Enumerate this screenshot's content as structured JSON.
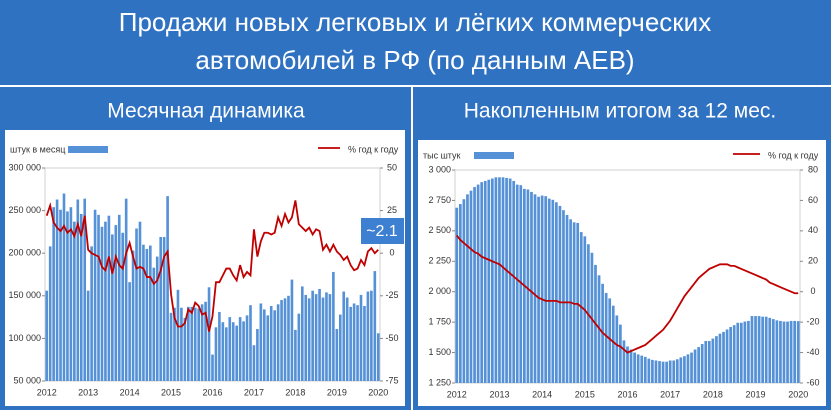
{
  "header": {
    "title_lines": [
      "Продажи новых легковых и лёгких коммерческих",
      "автомобилей в РФ (по данным АЕВ)"
    ]
  },
  "chart_data": [
    {
      "type": "bar_line",
      "title": "Месячная динамика",
      "annotation": "~2.1",
      "categories": [
        "2012",
        null,
        null,
        null,
        null,
        null,
        null,
        null,
        null,
        null,
        null,
        null,
        "2013",
        null,
        null,
        null,
        null,
        null,
        null,
        null,
        null,
        null,
        null,
        null,
        "2014",
        null,
        null,
        null,
        null,
        null,
        null,
        null,
        null,
        null,
        null,
        null,
        "2015",
        null,
        null,
        null,
        null,
        null,
        null,
        null,
        null,
        null,
        null,
        null,
        "2016",
        null,
        null,
        null,
        null,
        null,
        null,
        null,
        null,
        null,
        null,
        null,
        "2017",
        null,
        null,
        null,
        null,
        null,
        null,
        null,
        null,
        null,
        null,
        null,
        "2018",
        null,
        null,
        null,
        null,
        null,
        null,
        null,
        null,
        null,
        null,
        null,
        "2019",
        null,
        null,
        null,
        null,
        null,
        null,
        null,
        null,
        null,
        null,
        null,
        "2020"
      ],
      "series": [
        {
          "name": "штук в месяц",
          "type": "bar",
          "color": "#5591d6",
          "values": [
            156000,
            208000,
            254000,
            263000,
            251000,
            270000,
            249000,
            254000,
            237000,
            263000,
            246000,
            264000,
            156000,
            208000,
            251000,
            245000,
            231000,
            237000,
            244000,
            222000,
            233000,
            245000,
            224000,
            264000,
            166000,
            203000,
            229000,
            237000,
            210000,
            205000,
            209000,
            183000,
            196000,
            219000,
            219000,
            267000,
            130000,
            136000,
            157000,
            136000,
            124000,
            137000,
            137000,
            136000,
            135000,
            140000,
            143000,
            160000,
            81000,
            113000,
            131000,
            119000,
            113000,
            125000,
            119000,
            115000,
            125000,
            120000,
            127000,
            139000,
            92000,
            111000,
            141000,
            134000,
            127000,
            138000,
            133000,
            140000,
            145000,
            147000,
            150000,
            169000,
            110000,
            129000,
            161000,
            151000,
            147000,
            156000,
            152000,
            158000,
            148000,
            154000,
            152000,
            178000,
            111000,
            128000,
            155000,
            148000,
            137000,
            141000,
            139000,
            151000,
            138000,
            155000,
            156000,
            179000,
            106000
          ]
        },
        {
          "name": "% год к году",
          "type": "line",
          "axis": "y2",
          "color": "#c00000",
          "values": [
            22,
            28,
            18,
            15,
            13,
            16,
            12,
            14,
            10,
            17,
            10,
            22,
            2,
            0,
            -1,
            -2,
            -8,
            -10,
            -2,
            -12,
            -2,
            -7,
            -9,
            0,
            6,
            -2,
            -9,
            -8,
            -9,
            -14,
            -14,
            -18,
            -16,
            -10,
            -2,
            1,
            -24,
            -38,
            -43,
            -43,
            -41,
            -33,
            -35,
            -29,
            -31,
            -36,
            -35,
            -46,
            -37,
            -17,
            -17,
            -13,
            -9,
            -9,
            -13,
            -16,
            -7,
            -14,
            -11,
            -13,
            14,
            -2,
            7,
            12,
            12,
            11,
            12,
            21,
            16,
            23,
            18,
            21,
            31,
            17,
            15,
            13,
            15,
            11,
            14,
            13,
            2,
            5,
            1,
            5,
            1,
            -1,
            -4,
            -2,
            -7,
            -10,
            -9,
            -4,
            -7,
            1,
            3,
            0,
            2
          ]
        }
      ],
      "ylim": [
        50000,
        300000
      ],
      "yticks": [
        {
          "value": 50000,
          "label": "50 000"
        },
        {
          "value": 100000,
          "label": "100 000"
        },
        {
          "value": 150000,
          "label": "150 000"
        },
        {
          "value": 200000,
          "label": "200 000"
        },
        {
          "value": 250000,
          "label": "250 000"
        },
        {
          "value": 300000,
          "label": "300 000"
        }
      ],
      "y2lim": [
        -75,
        50
      ],
      "y2ticks": [
        -75,
        -50,
        -25,
        0,
        25,
        50
      ]
    },
    {
      "type": "bar_line",
      "title": "Накопленным итогом за 12 мес.",
      "categories": [
        "2012",
        null,
        null,
        null,
        null,
        null,
        null,
        null,
        null,
        null,
        null,
        null,
        "2013",
        null,
        null,
        null,
        null,
        null,
        null,
        null,
        null,
        null,
        null,
        null,
        "2014",
        null,
        null,
        null,
        null,
        null,
        null,
        null,
        null,
        null,
        null,
        null,
        "2015",
        null,
        null,
        null,
        null,
        null,
        null,
        null,
        null,
        null,
        null,
        null,
        "2016",
        null,
        null,
        null,
        null,
        null,
        null,
        null,
        null,
        null,
        null,
        null,
        "2017",
        null,
        null,
        null,
        null,
        null,
        null,
        null,
        null,
        null,
        null,
        null,
        "2018",
        null,
        null,
        null,
        null,
        null,
        null,
        null,
        null,
        null,
        null,
        null,
        "2019",
        null,
        null,
        null,
        null,
        null,
        null,
        null,
        null,
        null,
        null,
        null,
        "2020"
      ],
      "series": [
        {
          "name": "тыс штук",
          "type": "bar",
          "color": "#5591d6",
          "values": [
            2690,
            2720,
            2760,
            2800,
            2830,
            2860,
            2880,
            2900,
            2910,
            2920,
            2930,
            2940,
            2940,
            2940,
            2935,
            2930,
            2910,
            2880,
            2875,
            2845,
            2840,
            2820,
            2800,
            2780,
            2790,
            2785,
            2765,
            2755,
            2735,
            2705,
            2670,
            2630,
            2595,
            2570,
            2565,
            2490,
            2455,
            2390,
            2320,
            2220,
            2135,
            2065,
            1990,
            1945,
            1885,
            1805,
            1730,
            1600,
            1550,
            1525,
            1500,
            1485,
            1475,
            1465,
            1450,
            1440,
            1435,
            1430,
            1425,
            1425,
            1435,
            1435,
            1445,
            1460,
            1470,
            1485,
            1500,
            1525,
            1545,
            1570,
            1595,
            1595,
            1615,
            1635,
            1655,
            1670,
            1690,
            1710,
            1725,
            1745,
            1745,
            1755,
            1760,
            1800,
            1800,
            1800,
            1795,
            1795,
            1785,
            1775,
            1765,
            1760,
            1755,
            1755,
            1760,
            1760,
            1758
          ]
        },
        {
          "name": "% год к году",
          "type": "line",
          "axis": "y2",
          "color": "#c00000",
          "values": [
            37,
            34,
            32,
            30,
            28,
            26,
            25,
            23,
            22,
            21,
            20,
            19,
            18,
            16,
            14,
            12,
            10,
            8,
            6,
            4,
            2,
            0,
            -2,
            -4,
            -5,
            -6,
            -6,
            -6,
            -6,
            -7,
            -7,
            -7,
            -7,
            -8,
            -8,
            -10,
            -12,
            -15,
            -18,
            -21,
            -24,
            -27,
            -29,
            -31,
            -33,
            -35,
            -36,
            -38,
            -40,
            -39,
            -38,
            -37,
            -36,
            -35,
            -33,
            -31,
            -29,
            -27,
            -25,
            -22,
            -19,
            -15,
            -11,
            -7,
            -3,
            0,
            3,
            6,
            9,
            11,
            13,
            15,
            16,
            17,
            18,
            18,
            18,
            17,
            17,
            16,
            15,
            14,
            13,
            12,
            11,
            10,
            9,
            8,
            6,
            5,
            4,
            3,
            2,
            1,
            0,
            -1,
            -1
          ]
        }
      ],
      "ylim": [
        1250,
        3000
      ],
      "yticks": [
        {
          "value": 1250,
          "label": "1 250"
        },
        {
          "value": 1500,
          "label": "1 500"
        },
        {
          "value": 1750,
          "label": "1 750"
        },
        {
          "value": 2000,
          "label": "2 000"
        },
        {
          "value": 2250,
          "label": "2 250"
        },
        {
          "value": 2500,
          "label": "2 500"
        },
        {
          "value": 2750,
          "label": "2 750"
        },
        {
          "value": 3000,
          "label": "3 000"
        }
      ],
      "y2lim": [
        -60,
        80
      ],
      "y2ticks": [
        -60,
        -40,
        -20,
        0,
        20,
        40,
        60,
        80
      ]
    }
  ]
}
